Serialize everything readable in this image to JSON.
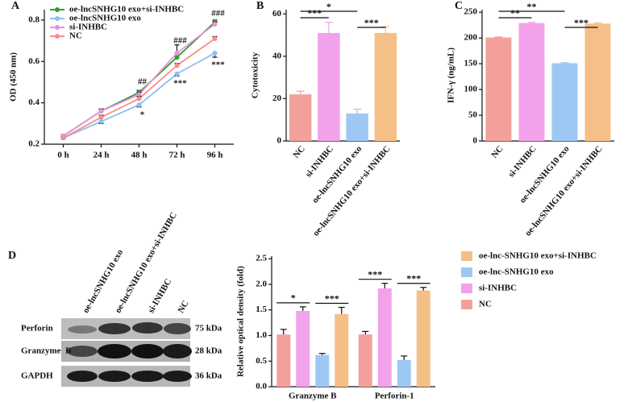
{
  "chart_data": [
    {
      "type": "line",
      "label": "A",
      "ylabel": "OD (450 nm)",
      "categories": [
        "0 h",
        "24 h",
        "48 h",
        "72 h",
        "96 h"
      ],
      "ylim": [
        0.2,
        0.85
      ],
      "yticks": [
        0.2,
        0.4,
        0.6,
        0.8
      ],
      "series": [
        {
          "name": "oe-lncSNHG10 exo+si-INHBC",
          "color": "#2ca02c",
          "values": [
            0.24,
            0.36,
            0.45,
            0.62,
            0.79
          ],
          "errors": [
            0.005,
            0.01,
            0.01,
            0.02,
            0.01
          ]
        },
        {
          "name": "oe-lncSNHG10 exo",
          "color": "#8fbff0",
          "values": [
            0.23,
            0.31,
            0.39,
            0.54,
            0.64
          ],
          "errors": [
            0.005,
            0.01,
            0.01,
            0.01,
            0.02
          ]
        },
        {
          "name": "si-INHBC",
          "color": "#e98fe0",
          "values": [
            0.24,
            0.36,
            0.44,
            0.64,
            0.78
          ],
          "errors": [
            0.005,
            0.01,
            0.01,
            0.04,
            0.01
          ]
        },
        {
          "name": "NC",
          "color": "#f2918a",
          "values": [
            0.23,
            0.33,
            0.42,
            0.58,
            0.71
          ],
          "errors": [
            0.005,
            0.01,
            0.01,
            0.01,
            0.01
          ]
        }
      ],
      "annotations": [
        "##",
        "###",
        "###",
        "*",
        "***",
        "***"
      ]
    },
    {
      "type": "bar",
      "label": "B",
      "ylabel": "Cytotoxicity",
      "categories": [
        "NC",
        "si-INHBC",
        "oe-lncSNHG10 exo",
        "oe-lncSNHG10 exo+si-INHBC"
      ],
      "colors": [
        "#f4a09a",
        "#f2a2ea",
        "#9ec8f4",
        "#f5bf88"
      ],
      "values": [
        22,
        51,
        13,
        51
      ],
      "errors": [
        1.5,
        5,
        2,
        3
      ],
      "ylim": [
        0,
        62
      ],
      "yticks": [
        0,
        20,
        40,
        60
      ],
      "annotations": [
        "***",
        "*",
        "***"
      ]
    },
    {
      "type": "bar",
      "label": "C",
      "ylabel": "IFN-γ (ng/mL)",
      "categories": [
        "NC",
        "si-INHBC",
        "oe-lncSNHG10 exo",
        "oe-lncSNHG10 exo+si-INHBC"
      ],
      "colors": [
        "#f4a09a",
        "#f2a2ea",
        "#9ec8f4",
        "#f5bf88"
      ],
      "values": [
        201,
        229,
        151,
        228
      ],
      "errors": [
        1,
        1.5,
        1,
        1.5
      ],
      "ylim": [
        0,
        255
      ],
      "yticks": [
        0,
        50,
        100,
        150,
        200,
        250
      ],
      "annotations": [
        "**",
        "**",
        "***"
      ]
    },
    {
      "type": "grouped_bar",
      "label": "D",
      "ylabel": "Relative optical density (fold)",
      "categories": [
        "Granzyme B",
        "Perforin-1"
      ],
      "ylim": [
        0,
        2.55
      ],
      "yticks": [
        {
          "value": 0,
          "label": "0.0"
        },
        0.5,
        {
          "value": 1,
          "label": "1.0"
        },
        1.5,
        {
          "value": 2,
          "label": "2.0"
        },
        2.5
      ],
      "series": [
        {
          "name": "NC",
          "color": "#f4a09a",
          "values": [
            1.02,
            1.02
          ],
          "errors": [
            0.1,
            0.06
          ]
        },
        {
          "name": "si-INHBC",
          "color": "#f2a2ea",
          "values": [
            1.48,
            1.92
          ],
          "errors": [
            0.08,
            0.1
          ]
        },
        {
          "name": "oe-lnc-SNHG10 exo",
          "color": "#9ec8f4",
          "values": [
            0.62,
            0.52
          ],
          "errors": [
            0.03,
            0.08
          ]
        },
        {
          "name": "oe-lnc-SNHG10 exo+si-INHBC",
          "color": "#f5bf88",
          "values": [
            1.42,
            1.88
          ],
          "errors": [
            0.13,
            0.06
          ]
        }
      ],
      "annotations": [
        "*",
        "***",
        "***",
        "***"
      ]
    }
  ],
  "blot": {
    "lanes": [
      "oe-lncSNHG10 exo",
      "oe-lncSNHG10 exo+si-INHBC",
      "si-INHBC",
      "NC"
    ],
    "rows": [
      "Perforin",
      "Granzyme  B",
      "GAPDH"
    ],
    "sizes": [
      "75 kDa",
      "28 kDa",
      "36 kDa"
    ]
  }
}
